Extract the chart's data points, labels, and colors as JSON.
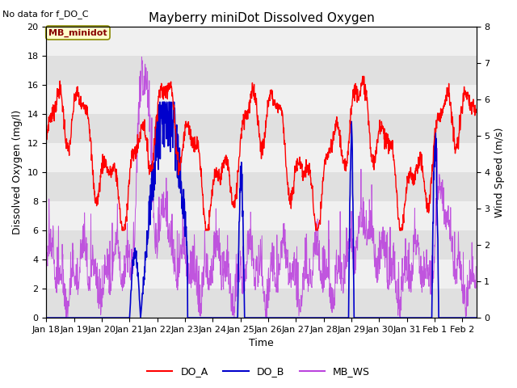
{
  "title": "Mayberry miniDot Dissolved Oxygen",
  "annotation_top_left": "No data for f_DO_C",
  "legend_box_label": "MB_minidot",
  "ylabel_left": "Dissolved Oxygen (mg/l)",
  "ylabel_right": "Wind Speed (m/s)",
  "xlabel": "Time",
  "ylim_left": [
    0,
    20
  ],
  "ylim_right": [
    0,
    8
  ],
  "color_DO_A": "#ff0000",
  "color_DO_B": "#0000cc",
  "color_MB_WS": "#bb44dd",
  "background_color": "#ffffff",
  "plot_bg_color": "#e0e0e0",
  "band_color": "#f0f0f0",
  "title_fontsize": 11,
  "label_fontsize": 9,
  "tick_fontsize": 8,
  "linewidth_a": 1.0,
  "linewidth_b": 1.2,
  "linewidth_ws": 0.7
}
